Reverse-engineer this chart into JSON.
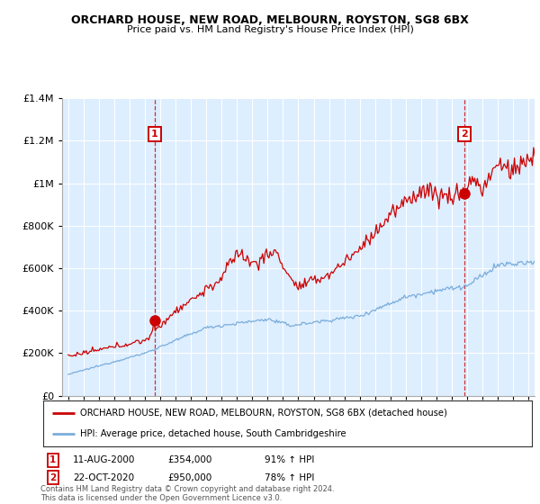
{
  "title": "ORCHARD HOUSE, NEW ROAD, MELBOURN, ROYSTON, SG8 6BX",
  "subtitle": "Price paid vs. HM Land Registry's House Price Index (HPI)",
  "legend_line1": "ORCHARD HOUSE, NEW ROAD, MELBOURN, ROYSTON, SG8 6BX (detached house)",
  "legend_line2": "HPI: Average price, detached house, South Cambridgeshire",
  "annotation1_date": "11-AUG-2000",
  "annotation1_price": "£354,000",
  "annotation1_hpi": "91% ↑ HPI",
  "annotation2_date": "22-OCT-2020",
  "annotation2_price": "£950,000",
  "annotation2_hpi": "78% ↑ HPI",
  "footer": "Contains HM Land Registry data © Crown copyright and database right 2024.\nThis data is licensed under the Open Government Licence v3.0.",
  "red_color": "#cc0000",
  "blue_color": "#7aaddb",
  "bg_fill": "#ddeeff",
  "background_color": "#ffffff",
  "ylim": [
    0,
    1400000
  ],
  "yticks": [
    0,
    200000,
    400000,
    600000,
    800000,
    1000000,
    1200000,
    1400000
  ],
  "sale1_x": 2000.62,
  "sale1_y": 354000,
  "sale2_x": 2020.8,
  "sale2_y": 950000,
  "xmin": 1994.6,
  "xmax": 2025.4
}
